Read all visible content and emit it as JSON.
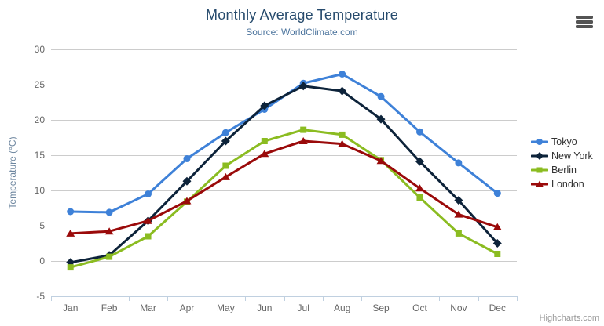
{
  "header": {
    "title": "Monthly Average Temperature",
    "subtitle": "Source: WorldClimate.com"
  },
  "credit": "Highcharts.com",
  "chart_data": {
    "type": "line",
    "title": "Monthly Average Temperature",
    "subtitle": "Source: WorldClimate.com",
    "categories": [
      "Jan",
      "Feb",
      "Mar",
      "Apr",
      "May",
      "Jun",
      "Jul",
      "Aug",
      "Sep",
      "Oct",
      "Nov",
      "Dec"
    ],
    "series": [
      {
        "name": "Tokyo",
        "color": "#3e81d8",
        "marker": "circle",
        "values": [
          7.0,
          6.9,
          9.5,
          14.5,
          18.2,
          21.5,
          25.2,
          26.5,
          23.3,
          18.3,
          13.9,
          9.6
        ]
      },
      {
        "name": "New York",
        "color": "#0d233a",
        "marker": "diamond",
        "values": [
          -0.2,
          0.8,
          5.7,
          11.3,
          17.0,
          22.0,
          24.8,
          24.1,
          20.1,
          14.1,
          8.6,
          2.5
        ]
      },
      {
        "name": "Berlin",
        "color": "#8bbc21",
        "marker": "square",
        "values": [
          -0.9,
          0.6,
          3.5,
          8.4,
          13.5,
          17.0,
          18.6,
          17.9,
          14.3,
          9.0,
          3.9,
          1.0
        ]
      },
      {
        "name": "London",
        "color": "#9a0a0a",
        "marker": "triangle",
        "values": [
          3.9,
          4.2,
          5.7,
          8.5,
          11.9,
          15.2,
          17.0,
          16.6,
          14.2,
          10.3,
          6.6,
          4.8
        ]
      }
    ],
    "xlabel": "",
    "ylabel": "Temperature (°C)",
    "ylim": [
      -5,
      30
    ],
    "ytick_interval": 5,
    "yticks": [
      -5,
      0,
      5,
      10,
      15,
      20,
      25,
      30
    ],
    "grid": true,
    "legend_position": "right",
    "colors": {
      "grid_line": "#cccccc",
      "axis_line": "#c0d0e0",
      "tick_label": "#666666",
      "axis_title": "#6d869f",
      "title": "#274b6d",
      "subtitle": "#4d759e"
    }
  }
}
